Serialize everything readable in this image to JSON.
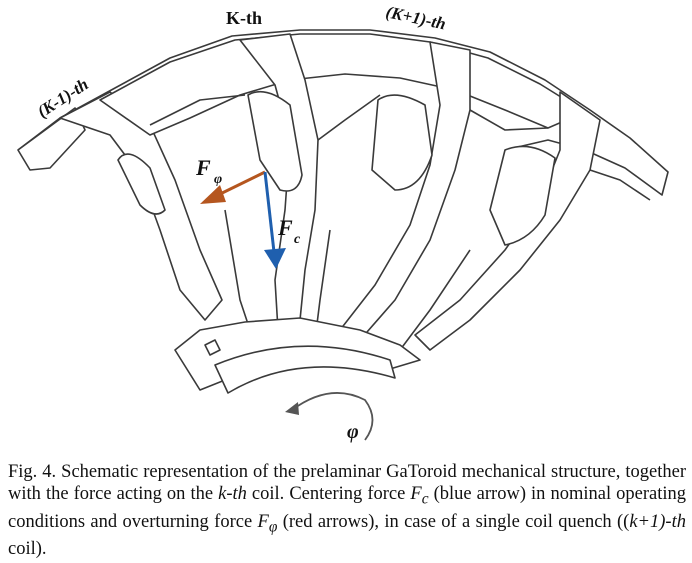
{
  "figure": {
    "labels": {
      "coil_prev": "(K-1)-th",
      "coil_k": "K-th",
      "coil_next": "(K+1)-th",
      "force_phi": "F",
      "force_phi_sub": "φ",
      "force_c": "F",
      "force_c_sub": "c",
      "angle": "φ"
    },
    "colors": {
      "force_phi_arrow": "#b5561f",
      "force_c_arrow": "#1f5fae",
      "structure_stroke": "#3a3a3a",
      "structure_fill": "#ffffff",
      "rotation_arrow": "#555555"
    }
  },
  "caption": {
    "part1": "Fig. 4. Schematic representation of the prelaminar GaToroid mechanical structure, together with the force acting on the ",
    "coil_ref": "k-th",
    "part2": " coil. Centering force ",
    "fc_symbol": "F",
    "fc_sub": "c",
    "part3": " (blue arrow) in nominal operating conditions and overturning force ",
    "fphi_symbol": "F",
    "fphi_sub": "φ",
    "part4": " (red arrows), in case of a single coil quench ((",
    "quench_ref": "k+1)-th",
    "part5": " coil)."
  }
}
